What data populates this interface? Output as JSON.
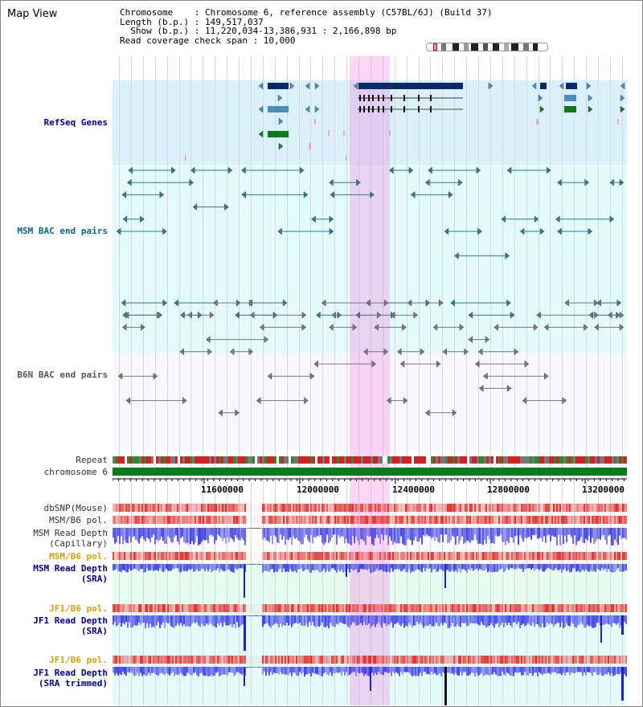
{
  "title": "Map View",
  "info": {
    "line1": "Chromosome    : Chromosome 6, reference assembly (C57BL/6J) (Build 37)",
    "line2": "Length (b.p.) : 149,517,037",
    "line3": "  Show (b.p.) : 11,220,034-13,386,931 : 2,166,898 bp",
    "line4": "Read coverage check span : 10,000"
  },
  "tracks": {
    "refseq": "RefSeq Genes",
    "msm_bac": "MSM BAC end pairs",
    "b6n_bac": "B6N BAC end pairs",
    "repeat": "Repeat",
    "chromosome": "chromosome 6",
    "dbsnp": "dbSNP(Mouse)",
    "msm_pol1": "MSM/B6 pol.",
    "msm_depth_cap_1": "MSM Read Depth",
    "msm_depth_cap_2": "(Capillary)",
    "msm_pol2": "MSM/B6 pol.",
    "msm_depth_sra_1": "MSM Read Depth",
    "msm_depth_sra_2": "(SRA)",
    "jf1_pol1": "JF1/B6 pol.",
    "jf1_depth_1": "JF1 Read Depth",
    "jf1_depth_2": "(SRA)",
    "jf1_pol2": "JF1/B6 pol.",
    "jf1_trim_1": "JF1 Read Depth",
    "jf1_trim_2": "(SRA trimmed)"
  },
  "axis_ticks": [
    "11600000",
    "12000000",
    "12400000",
    "12800000",
    "13200000"
  ],
  "colors": {
    "refseq_bg": "#daf0fb",
    "bac_bg": "#e3fbfb",
    "highlight": "#f6c9ee",
    "gene_dark": "#0a2a6a",
    "gene_mid": "#4a8fb8",
    "gene_green": "#0a7a1a",
    "depth_blue": "#3a3ae6",
    "pol_red": "#e0302a",
    "chromosome_green": "#0a7a1a",
    "navy_label": "#00009a",
    "teal_label": "#006a8a",
    "orange_label": "#e0a000"
  }
}
